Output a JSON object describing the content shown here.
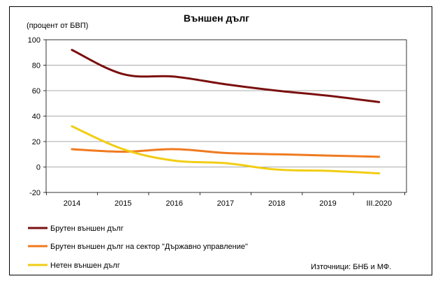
{
  "chart_data": {
    "type": "line",
    "title": "Външен дълг",
    "ylabel": "(процент от БВП)",
    "categories": [
      "2014",
      "2015",
      "2016",
      "2017",
      "2018",
      "2019",
      "III.2020"
    ],
    "ylim": [
      -20,
      100
    ],
    "yticks": [
      -20,
      0,
      20,
      40,
      60,
      80,
      100
    ],
    "grid": true,
    "legend_position": "bottom-left",
    "series": [
      {
        "name": "Брутен външен дълг",
        "color": "#7b0f0f",
        "values": [
          92,
          73,
          71,
          65,
          60,
          56,
          51
        ]
      },
      {
        "name": "Брутен външен дълг на сектор \"Държавно управление\"",
        "color": "#f07a1f",
        "values": [
          14,
          12,
          14,
          11,
          10,
          9,
          8
        ]
      },
      {
        "name": "Нетен външен дълг",
        "color": "#f2cd12",
        "values": [
          32,
          14,
          5,
          3,
          -2,
          -3,
          -5
        ]
      }
    ],
    "source": "Източници: БНБ и МФ."
  }
}
